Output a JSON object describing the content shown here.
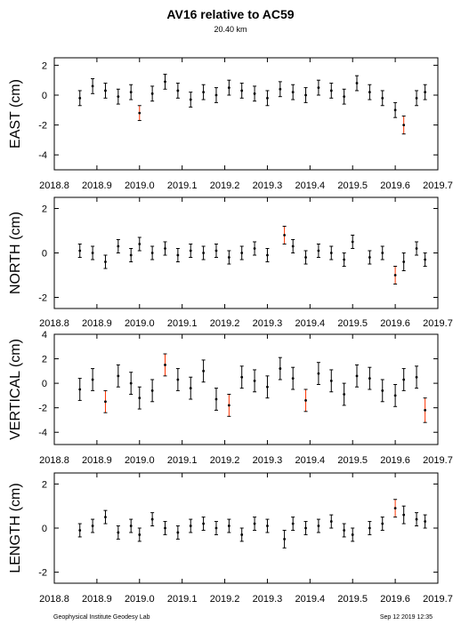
{
  "title": "AV16 relative to AC59",
  "subtitle": "20.40 km",
  "footer_left": "Geophysical Institute Geodesy Lab",
  "footer_right": "Sep 12 2019 12:35",
  "colors": {
    "point": "#000000",
    "highlight": "#ff3300",
    "axis": "#000000"
  },
  "chart_data": [
    {
      "type": "scatter",
      "ylabel": "EAST (cm)",
      "xlim": [
        2018.8,
        2019.7
      ],
      "ylim": [
        -5,
        2.5
      ],
      "xticks": [
        "2018.8",
        "2018.9",
        "2019.0",
        "2019.1",
        "2019.2",
        "2019.3",
        "2019.4",
        "2019.5",
        "2019.6",
        "2019.7"
      ],
      "yticks": [
        "2",
        "0",
        "-2",
        "-4"
      ],
      "series": [
        {
          "x": [
            2018.86,
            2018.89,
            2018.92,
            2018.95,
            2018.98,
            2019.0,
            2019.03,
            2019.06,
            2019.09,
            2019.12,
            2019.15,
            2019.18,
            2019.21,
            2019.24,
            2019.27,
            2019.3,
            2019.33,
            2019.36,
            2019.39,
            2019.42,
            2019.45,
            2019.48,
            2019.51,
            2019.54,
            2019.57,
            2019.6,
            2019.62,
            2019.65,
            2019.67
          ],
          "y": [
            -0.2,
            0.6,
            0.3,
            -0.1,
            0.2,
            -1.2,
            0.1,
            0.9,
            0.3,
            -0.3,
            0.2,
            0.0,
            0.5,
            0.3,
            0.1,
            -0.2,
            0.4,
            0.2,
            0.0,
            0.5,
            0.3,
            -0.1,
            0.8,
            0.2,
            -0.2,
            -1.0,
            -2.0,
            -0.2,
            0.2
          ],
          "err": [
            0.5,
            0.5,
            0.5,
            0.5,
            0.5,
            0.5,
            0.5,
            0.5,
            0.5,
            0.5,
            0.5,
            0.5,
            0.5,
            0.5,
            0.5,
            0.5,
            0.5,
            0.5,
            0.5,
            0.5,
            0.5,
            0.5,
            0.5,
            0.5,
            0.5,
            0.5,
            0.6,
            0.5,
            0.5
          ]
        }
      ]
    },
    {
      "type": "scatter",
      "ylabel": "NORTH (cm)",
      "xlim": [
        2018.8,
        2019.7
      ],
      "ylim": [
        -2.5,
        2.5
      ],
      "xticks": [
        "2018.8",
        "2018.9",
        "2019.0",
        "2019.1",
        "2019.2",
        "2019.3",
        "2019.4",
        "2019.5",
        "2019.6",
        "2019.7"
      ],
      "yticks": [
        "2",
        "0",
        "-2"
      ],
      "series": [
        {
          "x": [
            2018.86,
            2018.89,
            2018.92,
            2018.95,
            2018.98,
            2019.0,
            2019.03,
            2019.06,
            2019.09,
            2019.12,
            2019.15,
            2019.18,
            2019.21,
            2019.24,
            2019.27,
            2019.3,
            2019.34,
            2019.36,
            2019.39,
            2019.42,
            2019.45,
            2019.48,
            2019.5,
            2019.54,
            2019.57,
            2019.6,
            2019.62,
            2019.65,
            2019.67
          ],
          "y": [
            0.1,
            0.0,
            -0.4,
            0.3,
            -0.1,
            0.4,
            0.0,
            0.2,
            -0.1,
            0.1,
            0.0,
            0.1,
            -0.2,
            0.0,
            0.2,
            -0.1,
            0.8,
            0.3,
            -0.2,
            0.1,
            0.0,
            -0.3,
            0.5,
            -0.2,
            0.0,
            -1.0,
            -0.4,
            0.2,
            -0.3
          ],
          "err": [
            0.3,
            0.3,
            0.3,
            0.3,
            0.3,
            0.3,
            0.3,
            0.3,
            0.3,
            0.3,
            0.3,
            0.3,
            0.3,
            0.3,
            0.3,
            0.3,
            0.4,
            0.3,
            0.3,
            0.3,
            0.3,
            0.3,
            0.3,
            0.3,
            0.3,
            0.4,
            0.4,
            0.3,
            0.3
          ]
        }
      ]
    },
    {
      "type": "scatter",
      "ylabel": "VERTICAL (cm)",
      "xlim": [
        2018.8,
        2019.7
      ],
      "ylim": [
        -5,
        4
      ],
      "xticks": [
        "2018.8",
        "2018.9",
        "2019.0",
        "2019.1",
        "2019.2",
        "2019.3",
        "2019.4",
        "2019.5",
        "2019.6",
        "2019.7"
      ],
      "yticks": [
        "4",
        "2",
        "0",
        "-2",
        "-4"
      ],
      "series": [
        {
          "x": [
            2018.86,
            2018.89,
            2018.92,
            2018.95,
            2018.98,
            2019.0,
            2019.03,
            2019.06,
            2019.09,
            2019.12,
            2019.15,
            2019.18,
            2019.21,
            2019.24,
            2019.27,
            2019.3,
            2019.33,
            2019.36,
            2019.39,
            2019.42,
            2019.45,
            2019.48,
            2019.51,
            2019.54,
            2019.57,
            2019.6,
            2019.62,
            2019.65,
            2019.67
          ],
          "y": [
            -0.5,
            0.3,
            -1.5,
            0.6,
            0.0,
            -1.2,
            -0.6,
            1.5,
            0.3,
            -0.4,
            1.0,
            -1.3,
            -1.8,
            0.5,
            0.2,
            -0.3,
            1.2,
            0.4,
            -1.4,
            0.8,
            0.2,
            -0.9,
            0.6,
            0.4,
            -0.6,
            -1.0,
            0.3,
            0.5,
            -2.2
          ],
          "err": [
            0.9,
            0.9,
            0.9,
            0.9,
            0.9,
            0.9,
            0.9,
            0.9,
            0.9,
            0.9,
            0.9,
            0.9,
            0.9,
            0.9,
            0.9,
            0.9,
            0.9,
            0.9,
            0.9,
            0.9,
            0.9,
            0.9,
            0.9,
            0.9,
            0.9,
            0.9,
            0.9,
            0.9,
            1.0
          ]
        }
      ]
    },
    {
      "type": "scatter",
      "ylabel": "LENGTH (cm)",
      "xlim": [
        2018.8,
        2019.7
      ],
      "ylim": [
        -2.5,
        2.5
      ],
      "xticks": [
        "2018.8",
        "2018.9",
        "2019.0",
        "2019.1",
        "2019.2",
        "2019.3",
        "2019.4",
        "2019.5",
        "2019.6",
        "2019.7"
      ],
      "yticks": [
        "2",
        "0",
        "-2"
      ],
      "series": [
        {
          "x": [
            2018.86,
            2018.89,
            2018.92,
            2018.95,
            2018.98,
            2019.0,
            2019.03,
            2019.06,
            2019.09,
            2019.12,
            2019.15,
            2019.18,
            2019.21,
            2019.24,
            2019.27,
            2019.3,
            2019.34,
            2019.36,
            2019.39,
            2019.42,
            2019.45,
            2019.48,
            2019.5,
            2019.54,
            2019.57,
            2019.6,
            2019.62,
            2019.65,
            2019.67
          ],
          "y": [
            -0.1,
            0.1,
            0.5,
            -0.2,
            0.1,
            -0.3,
            0.4,
            0.0,
            -0.2,
            0.1,
            0.2,
            0.0,
            0.1,
            -0.3,
            0.2,
            0.1,
            -0.5,
            0.2,
            0.0,
            0.1,
            0.3,
            -0.1,
            -0.3,
            0.0,
            0.2,
            0.9,
            0.6,
            0.4,
            0.3
          ],
          "err": [
            0.3,
            0.3,
            0.3,
            0.3,
            0.3,
            0.3,
            0.3,
            0.3,
            0.3,
            0.3,
            0.3,
            0.3,
            0.3,
            0.3,
            0.3,
            0.3,
            0.4,
            0.3,
            0.3,
            0.3,
            0.3,
            0.3,
            0.3,
            0.3,
            0.3,
            0.4,
            0.4,
            0.3,
            0.3
          ]
        }
      ]
    }
  ]
}
